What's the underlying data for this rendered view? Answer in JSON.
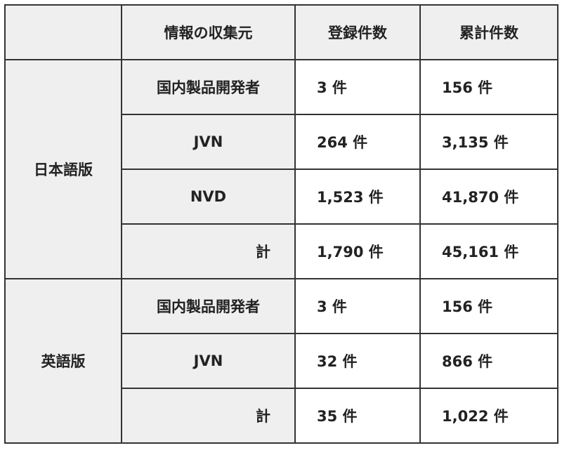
{
  "headers": [
    "",
    "情報の収集元",
    "登録件数",
    "累計件数"
  ],
  "groups": [
    {
      "label": "日本語版",
      "rows": [
        {
          "source": "国内製品開発者",
          "registered": "3 件",
          "cumulative": "156 件"
        },
        {
          "source": "JVN",
          "registered": "264 件",
          "cumulative": "3,135 件"
        },
        {
          "source": "NVD",
          "registered": "1,523 件",
          "cumulative": "41,870 件"
        },
        {
          "source": "計",
          "registered": "1,790 件",
          "cumulative": "45,161 件"
        }
      ]
    },
    {
      "label": "英語版",
      "rows": [
        {
          "source": "国内製品開発者",
          "registered": "3 件",
          "cumulative": "156 件"
        },
        {
          "source": "JVN",
          "registered": "32 件",
          "cumulative": "866 件"
        },
        {
          "source": "計",
          "registered": "35 件",
          "cumulative": "1,022 件"
        }
      ]
    }
  ]
}
